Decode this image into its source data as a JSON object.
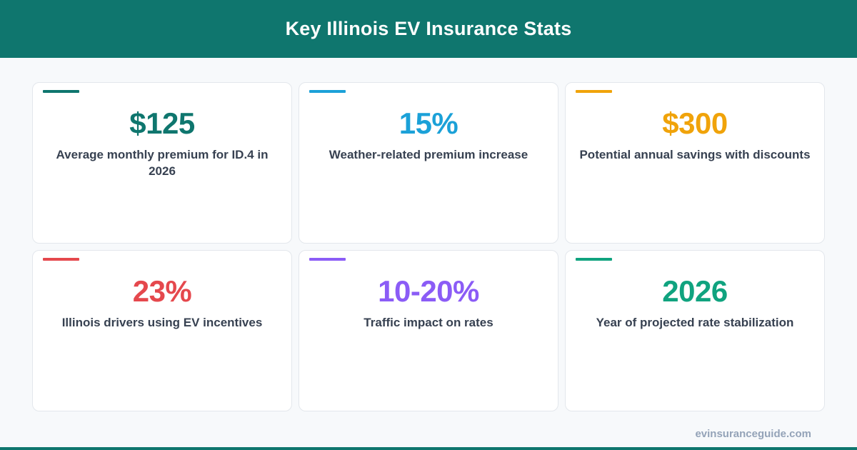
{
  "header": {
    "title": "Key Illinois EV Insurance Stats"
  },
  "cards": [
    {
      "value": "$125",
      "label": "Average monthly premium for ID.4 in 2026",
      "color": "#0f766e"
    },
    {
      "value": "15%",
      "label": "Weather-related premium increase",
      "color": "#1ba1d8"
    },
    {
      "value": "$300",
      "label": "Potential annual savings with discounts",
      "color": "#f0a30a"
    },
    {
      "value": "23%",
      "label": "Illinois drivers using EV incentives",
      "color": "#e5484d"
    },
    {
      "value": "10-20%",
      "label": "Traffic impact on rates",
      "color": "#8b5cf6"
    },
    {
      "value": "2026",
      "label": "Year of projected rate stabilization",
      "color": "#10a37f"
    }
  ],
  "footer": {
    "site": "evinsuranceguide.com"
  },
  "theme": {
    "brand": "#0f766e"
  }
}
